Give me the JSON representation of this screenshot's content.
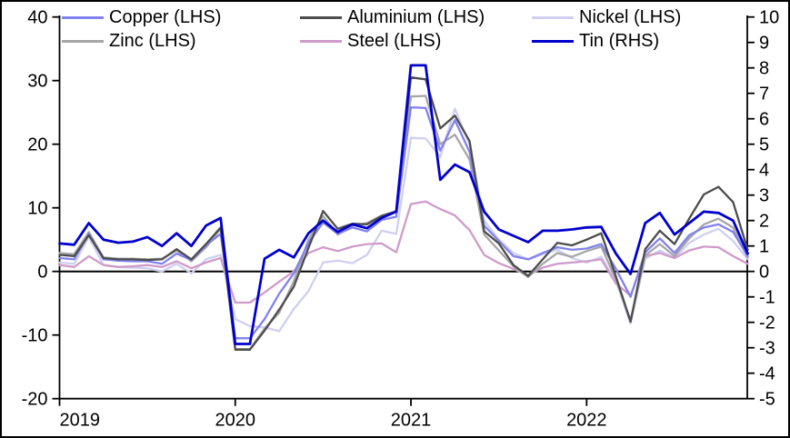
{
  "legend": {
    "items": [
      {
        "label": "Copper (LHS)",
        "series": "Copper"
      },
      {
        "label": "Aluminium (LHS)",
        "series": "Aluminium"
      },
      {
        "label": "Nickel (LHS)",
        "series": "Nickel"
      },
      {
        "label": "Zinc (LHS)",
        "series": "Zinc"
      },
      {
        "label": "Steel (LHS)",
        "series": "Steel"
      },
      {
        "label": "Tin (RHS)",
        "series": "Tin"
      }
    ]
  },
  "axes": {
    "left": {
      "ticks": [
        40,
        30,
        20,
        10,
        0,
        -10,
        -20
      ],
      "range": [
        -20,
        40
      ]
    },
    "right": {
      "ticks": [
        10,
        9,
        8,
        7,
        6,
        5,
        4,
        3,
        2,
        1,
        0,
        -1,
        -2,
        -3,
        -4,
        -5
      ],
      "range": [
        -5,
        10
      ]
    },
    "x": {
      "year_labels": [
        "2019",
        "2020",
        "2021",
        "2022"
      ]
    }
  },
  "chart_data": {
    "type": "line",
    "x_unit": "month",
    "grid": false,
    "legend_position": "top",
    "zero_line": true,
    "left_axis_range": [
      -20,
      40
    ],
    "right_axis_range": [
      -5,
      10
    ],
    "months": [
      "2019-01",
      "2019-02",
      "2019-03",
      "2019-04",
      "2019-05",
      "2019-06",
      "2019-07",
      "2019-08",
      "2019-09",
      "2019-10",
      "2019-11",
      "2019-12",
      "2020-01",
      "2020-02",
      "2020-03",
      "2020-04",
      "2020-05",
      "2020-06",
      "2020-07",
      "2020-08",
      "2020-09",
      "2020-10",
      "2020-11",
      "2020-12",
      "2021-01",
      "2021-02",
      "2021-03",
      "2021-04",
      "2021-05",
      "2021-06",
      "2021-07",
      "2021-08",
      "2021-09",
      "2021-10",
      "2021-11",
      "2021-12",
      "2022-01",
      "2022-02",
      "2022-03",
      "2022-04",
      "2022-05",
      "2022-06",
      "2022-07",
      "2022-08",
      "2022-09",
      "2022-10",
      "2022-11",
      "2022-12"
    ],
    "series": [
      {
        "name": "Nickel",
        "axis": "LHS",
        "color": "#cfcff2",
        "values": [
          1.4,
          1.2,
          5.4,
          1.0,
          0.7,
          0.6,
          0.5,
          0.0,
          1.2,
          -0.3,
          1.9,
          2.6,
          -7.5,
          -8.6,
          -8.8,
          -9.4,
          -5.9,
          -3.1,
          1.4,
          1.7,
          1.3,
          2.6,
          6.4,
          5.9,
          21.0,
          20.9,
          18.0,
          25.6,
          20.0,
          8.0,
          5.0,
          2.9,
          1.9,
          2.7,
          3.4,
          2.1,
          1.4,
          2.3,
          -1.5,
          -8.2,
          2.0,
          3.3,
          2.1,
          4.5,
          5.8,
          6.7,
          4.8,
          1.9
        ]
      },
      {
        "name": "Steel",
        "axis": "LHS",
        "color": "#cf9bca",
        "values": [
          1.0,
          0.7,
          2.4,
          1.0,
          0.7,
          0.8,
          1.0,
          0.7,
          1.6,
          0.5,
          1.4,
          2.1,
          -4.9,
          -4.9,
          -3.3,
          -1.6,
          0.0,
          2.9,
          3.8,
          3.2,
          3.9,
          4.3,
          4.4,
          3.0,
          10.6,
          11.0,
          9.8,
          8.8,
          6.5,
          2.6,
          1.3,
          0.4,
          -0.6,
          0.6,
          1.2,
          1.4,
          1.6,
          1.9,
          -1.9,
          -3.8,
          2.4,
          2.9,
          2.1,
          3.3,
          3.9,
          3.8,
          2.4,
          1.2
        ]
      },
      {
        "name": "Zinc",
        "axis": "LHS",
        "color": "#a6a6a6",
        "values": [
          2.9,
          2.7,
          6.2,
          2.2,
          2.0,
          2.0,
          1.9,
          2.0,
          3.3,
          1.6,
          3.8,
          6.7,
          -12.2,
          -12.2,
          -9.0,
          -6.5,
          -1.5,
          5.0,
          8.7,
          5.8,
          7.2,
          7.6,
          8.8,
          9.5,
          27.5,
          27.6,
          20.0,
          21.5,
          17.6,
          5.8,
          3.3,
          0.8,
          -0.9,
          1.2,
          2.9,
          2.3,
          3.2,
          3.9,
          -1.2,
          -7.7,
          2.5,
          4.3,
          2.4,
          5.2,
          7.4,
          8.3,
          6.9,
          2.2
        ]
      },
      {
        "name": "Copper",
        "axis": "LHS",
        "color": "#8181ed",
        "values": [
          2.1,
          1.9,
          5.9,
          1.9,
          1.7,
          1.6,
          1.6,
          1.2,
          2.8,
          1.8,
          4.1,
          5.9,
          -10.5,
          -10.5,
          -7.5,
          -3.5,
          -0.3,
          4.5,
          7.7,
          5.9,
          6.9,
          6.3,
          8.1,
          8.6,
          25.8,
          25.7,
          19.0,
          23.8,
          18.8,
          7.2,
          4.8,
          2.4,
          1.9,
          2.9,
          3.8,
          3.4,
          3.6,
          4.3,
          0.4,
          -4.0,
          3.0,
          5.2,
          2.9,
          5.7,
          6.9,
          7.4,
          6.2,
          2.4
        ]
      },
      {
        "name": "Aluminium",
        "axis": "LHS",
        "color": "#4d4d4d",
        "values": [
          2.6,
          2.4,
          5.7,
          2.1,
          1.9,
          1.9,
          1.8,
          1.9,
          3.5,
          1.9,
          4.3,
          6.9,
          -12.3,
          -12.3,
          -9.3,
          -6.0,
          -2.4,
          3.7,
          9.5,
          6.7,
          7.5,
          7.4,
          8.7,
          9.4,
          30.5,
          30.2,
          22.5,
          24.5,
          20.5,
          6.3,
          4.4,
          1.0,
          -0.7,
          1.9,
          4.5,
          4.1,
          5.0,
          6.0,
          -0.8,
          -7.9,
          3.5,
          6.4,
          4.3,
          8.3,
          12.1,
          13.3,
          10.9,
          3.4
        ]
      },
      {
        "name": "Tin",
        "axis": "RHS",
        "color": "#0000cd",
        "values": [
          1.1,
          1.05,
          1.9,
          1.25,
          1.13,
          1.17,
          1.35,
          1.0,
          1.5,
          1.0,
          1.8,
          2.1,
          -2.85,
          -2.85,
          0.5,
          0.85,
          0.55,
          1.5,
          2.0,
          1.55,
          1.85,
          1.7,
          2.1,
          2.35,
          8.1,
          8.1,
          3.6,
          4.2,
          3.9,
          2.35,
          1.65,
          1.4,
          1.15,
          1.6,
          1.6,
          1.65,
          1.73,
          1.75,
          0.7,
          -0.1,
          1.9,
          2.3,
          1.45,
          1.9,
          2.35,
          2.3,
          2.0,
          0.7
        ]
      }
    ]
  }
}
